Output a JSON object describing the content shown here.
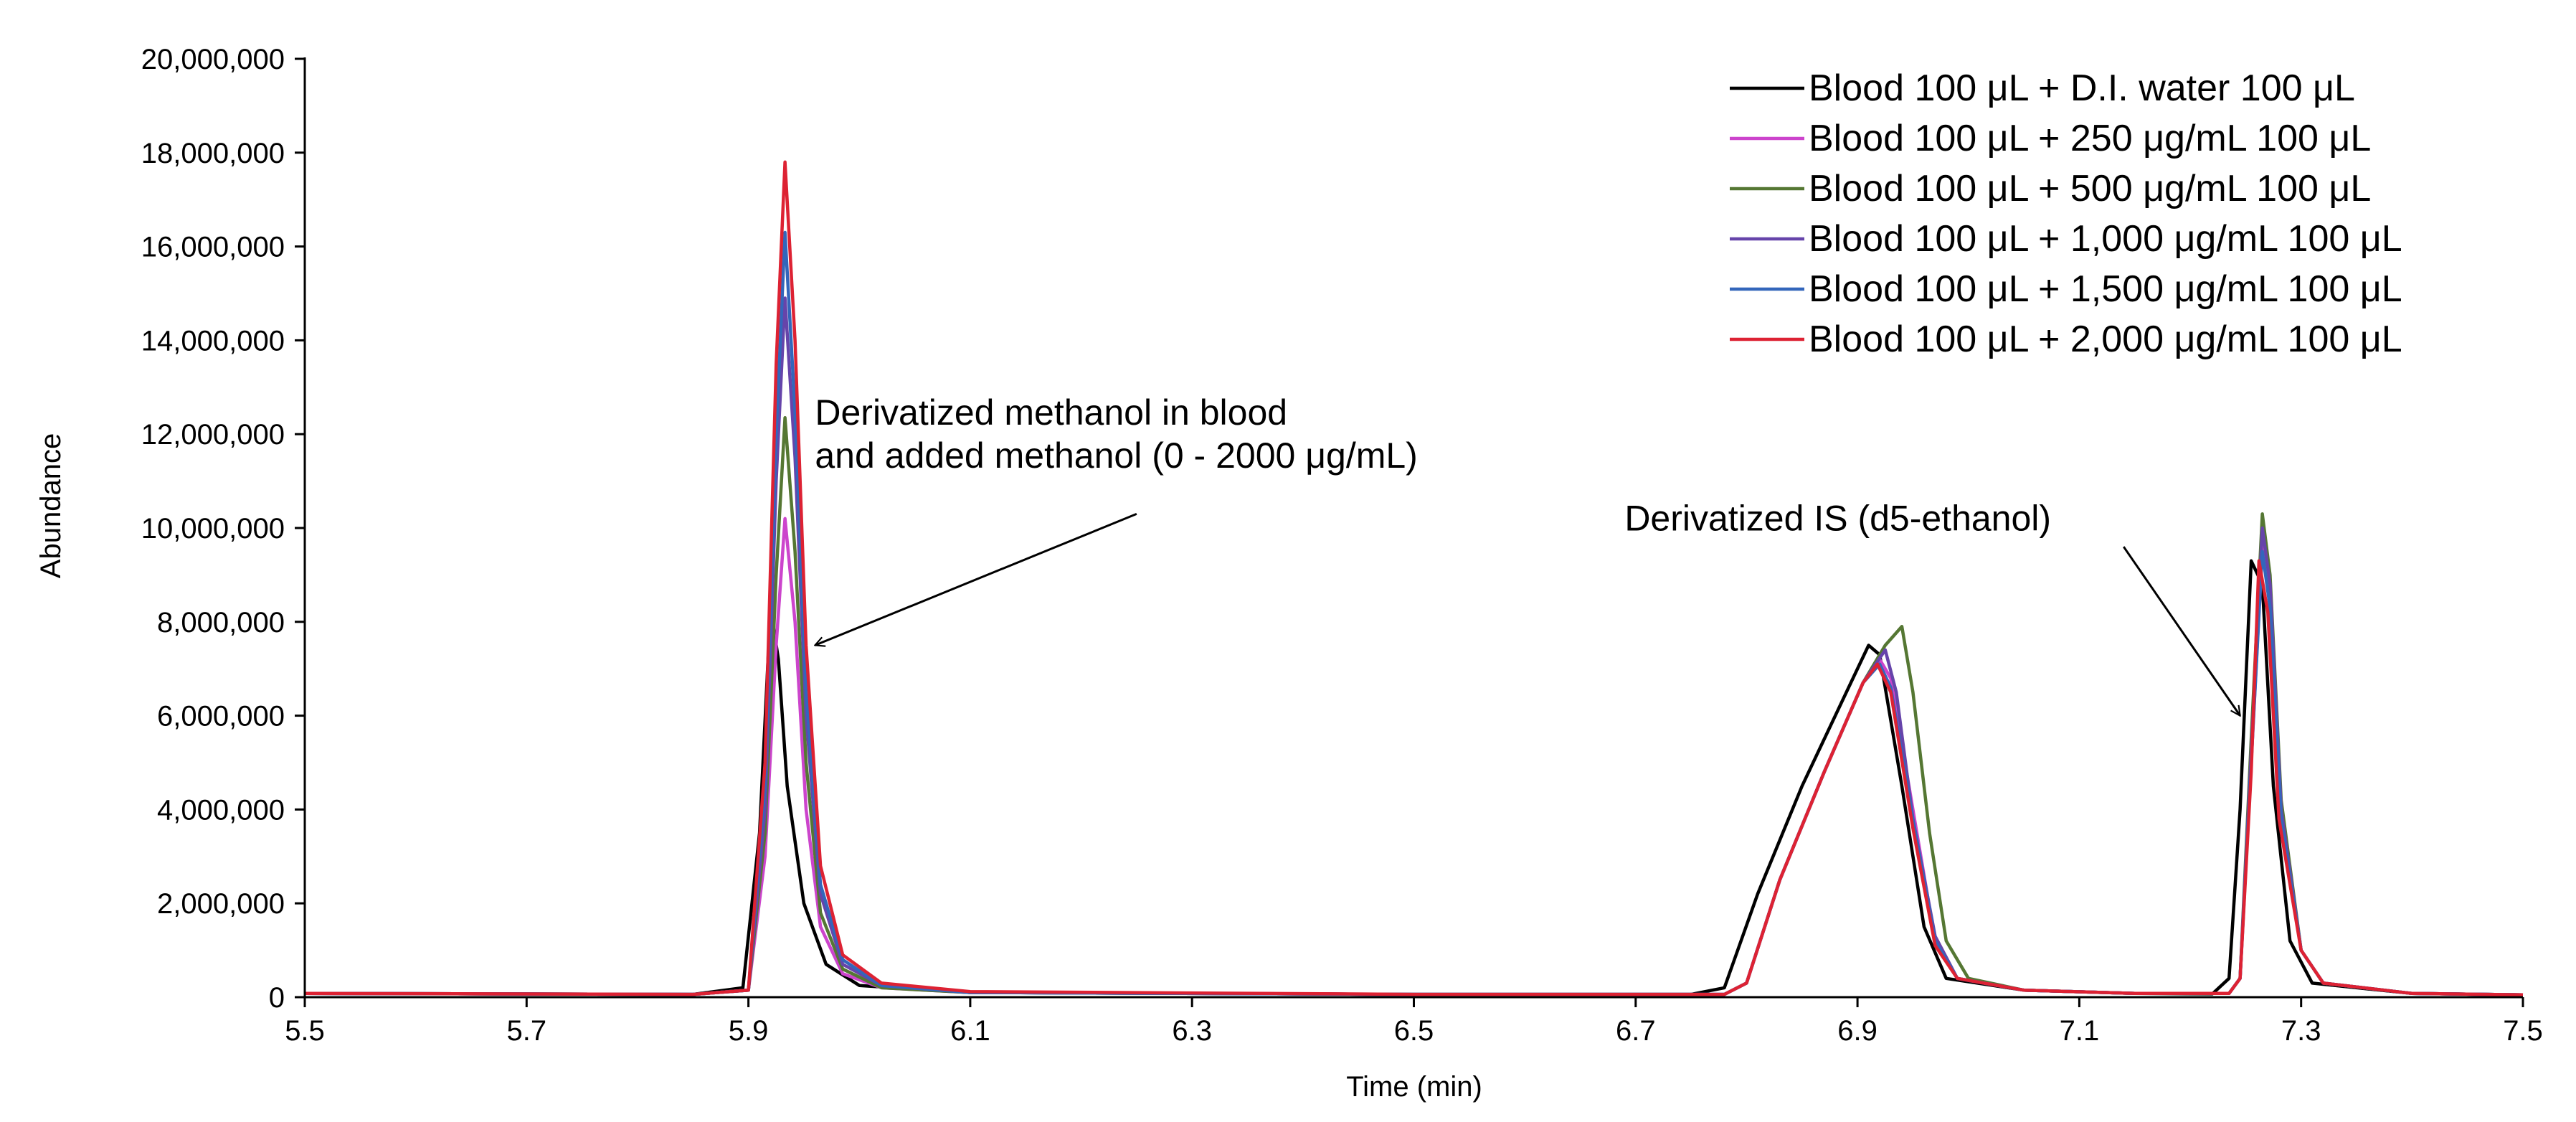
{
  "chart_data": {
    "type": "line",
    "title": "",
    "xlabel": "Time (min)",
    "ylabel": "Abundance",
    "xlim": [
      5.5,
      7.5
    ],
    "ylim": [
      0,
      20000000
    ],
    "x_ticks": [
      5.5,
      5.7,
      5.9,
      6.1,
      6.3,
      6.5,
      6.7,
      6.9,
      7.1,
      7.3,
      7.5
    ],
    "x_tick_labels": [
      "5.5",
      "5.7",
      "5.9",
      "6.1",
      "6.3",
      "6.5",
      "6.7",
      "6.9",
      "7.1",
      "7.3",
      "7.5"
    ],
    "y_ticks": [
      0,
      2000000,
      4000000,
      6000000,
      8000000,
      10000000,
      12000000,
      14000000,
      16000000,
      18000000,
      20000000
    ],
    "y_tick_labels": [
      "0",
      "2,000,000",
      "4,000,000",
      "6,000,000",
      "8,000,000",
      "10,000,000",
      "12,000,000",
      "14,000,000",
      "16,000,000",
      "18,000,000",
      "20,000,000"
    ],
    "grid": false,
    "legend_position": "top-right",
    "series": [
      {
        "name": "Blood 100 μL + D.I. water 100 μL",
        "color": "#000000",
        "points": [
          [
            5.5,
            80000
          ],
          [
            5.85,
            60000
          ],
          [
            5.895,
            200000
          ],
          [
            5.91,
            3500000
          ],
          [
            5.92,
            8300000
          ],
          [
            5.927,
            7200000
          ],
          [
            5.935,
            4500000
          ],
          [
            5.95,
            2000000
          ],
          [
            5.97,
            700000
          ],
          [
            6.0,
            250000
          ],
          [
            6.1,
            100000
          ],
          [
            6.5,
            60000
          ],
          [
            6.75,
            60000
          ],
          [
            6.78,
            200000
          ],
          [
            6.81,
            2200000
          ],
          [
            6.85,
            4500000
          ],
          [
            6.89,
            6500000
          ],
          [
            6.91,
            7500000
          ],
          [
            6.92,
            7300000
          ],
          [
            6.94,
            4500000
          ],
          [
            6.96,
            1500000
          ],
          [
            6.98,
            400000
          ],
          [
            7.05,
            150000
          ],
          [
            7.15,
            80000
          ],
          [
            7.22,
            70000
          ],
          [
            7.235,
            400000
          ],
          [
            7.245,
            4000000
          ],
          [
            7.255,
            9300000
          ],
          [
            7.265,
            8800000
          ],
          [
            7.275,
            4500000
          ],
          [
            7.29,
            1200000
          ],
          [
            7.31,
            300000
          ],
          [
            7.4,
            80000
          ],
          [
            7.5,
            50000
          ]
        ]
      },
      {
        "name": "Blood 100 μL + 250 μg/mL 100 μL",
        "color": "#cc44cc",
        "points": [
          [
            5.5,
            80000
          ],
          [
            5.85,
            60000
          ],
          [
            5.9,
            150000
          ],
          [
            5.915,
            3000000
          ],
          [
            5.925,
            7500000
          ],
          [
            5.933,
            10200000
          ],
          [
            5.942,
            8000000
          ],
          [
            5.952,
            4000000
          ],
          [
            5.965,
            1500000
          ],
          [
            5.985,
            500000
          ],
          [
            6.02,
            200000
          ],
          [
            6.1,
            100000
          ],
          [
            6.5,
            60000
          ],
          [
            6.78,
            60000
          ],
          [
            6.8,
            300000
          ],
          [
            6.83,
            2500000
          ],
          [
            6.87,
            4800000
          ],
          [
            6.905,
            6700000
          ],
          [
            6.92,
            7200000
          ],
          [
            6.93,
            6800000
          ],
          [
            6.95,
            4000000
          ],
          [
            6.97,
            1200000
          ],
          [
            6.99,
            400000
          ],
          [
            7.05,
            150000
          ],
          [
            7.15,
            80000
          ],
          [
            7.235,
            80000
          ],
          [
            7.245,
            400000
          ],
          [
            7.255,
            5000000
          ],
          [
            7.265,
            9600000
          ],
          [
            7.272,
            8500000
          ],
          [
            7.282,
            4000000
          ],
          [
            7.3,
            1000000
          ],
          [
            7.32,
            300000
          ],
          [
            7.4,
            80000
          ],
          [
            7.5,
            50000
          ]
        ]
      },
      {
        "name": "Blood 100 μL + 500 μg/mL 100 μL",
        "color": "#557733",
        "points": [
          [
            5.5,
            80000
          ],
          [
            5.85,
            60000
          ],
          [
            5.9,
            150000
          ],
          [
            5.915,
            3500000
          ],
          [
            5.925,
            9000000
          ],
          [
            5.933,
            12350000
          ],
          [
            5.942,
            9500000
          ],
          [
            5.952,
            5000000
          ],
          [
            5.965,
            1800000
          ],
          [
            5.985,
            600000
          ],
          [
            6.02,
            200000
          ],
          [
            6.1,
            100000
          ],
          [
            6.5,
            60000
          ],
          [
            6.78,
            60000
          ],
          [
            6.8,
            300000
          ],
          [
            6.83,
            2500000
          ],
          [
            6.87,
            4800000
          ],
          [
            6.905,
            6700000
          ],
          [
            6.925,
            7500000
          ],
          [
            6.94,
            7900000
          ],
          [
            6.95,
            6500000
          ],
          [
            6.965,
            3500000
          ],
          [
            6.98,
            1200000
          ],
          [
            7.0,
            400000
          ],
          [
            7.05,
            150000
          ],
          [
            7.15,
            80000
          ],
          [
            7.235,
            80000
          ],
          [
            7.245,
            400000
          ],
          [
            7.255,
            5500000
          ],
          [
            7.265,
            10300000
          ],
          [
            7.272,
            9000000
          ],
          [
            7.282,
            4200000
          ],
          [
            7.3,
            1000000
          ],
          [
            7.32,
            300000
          ],
          [
            7.4,
            80000
          ],
          [
            7.5,
            50000
          ]
        ]
      },
      {
        "name": "Blood 100 μL + 1,000 μg/mL 100 μL",
        "color": "#6644aa",
        "points": [
          [
            5.5,
            80000
          ],
          [
            5.85,
            60000
          ],
          [
            5.9,
            150000
          ],
          [
            5.915,
            4000000
          ],
          [
            5.925,
            11000000
          ],
          [
            5.933,
            14900000
          ],
          [
            5.942,
            11500000
          ],
          [
            5.952,
            6000000
          ],
          [
            5.965,
            2200000
          ],
          [
            5.985,
            700000
          ],
          [
            6.02,
            250000
          ],
          [
            6.1,
            100000
          ],
          [
            6.5,
            60000
          ],
          [
            6.78,
            60000
          ],
          [
            6.8,
            300000
          ],
          [
            6.83,
            2500000
          ],
          [
            6.87,
            4800000
          ],
          [
            6.905,
            6700000
          ],
          [
            6.925,
            7400000
          ],
          [
            6.935,
            6500000
          ],
          [
            6.95,
            3800000
          ],
          [
            6.97,
            1300000
          ],
          [
            6.99,
            400000
          ],
          [
            7.05,
            150000
          ],
          [
            7.15,
            80000
          ],
          [
            7.235,
            80000
          ],
          [
            7.245,
            400000
          ],
          [
            7.255,
            5200000
          ],
          [
            7.265,
            10000000
          ],
          [
            7.272,
            8800000
          ],
          [
            7.282,
            4000000
          ],
          [
            7.3,
            1000000
          ],
          [
            7.32,
            300000
          ],
          [
            7.4,
            80000
          ],
          [
            7.5,
            50000
          ]
        ]
      },
      {
        "name": "Blood 100 μL + 1,500 μg/mL 100 μL",
        "color": "#3366bb",
        "points": [
          [
            5.5,
            80000
          ],
          [
            5.85,
            60000
          ],
          [
            5.9,
            150000
          ],
          [
            5.915,
            4500000
          ],
          [
            5.925,
            12000000
          ],
          [
            5.933,
            16300000
          ],
          [
            5.942,
            12500000
          ],
          [
            5.952,
            6500000
          ],
          [
            5.965,
            2400000
          ],
          [
            5.985,
            800000
          ],
          [
            6.02,
            250000
          ],
          [
            6.1,
            100000
          ],
          [
            6.5,
            60000
          ],
          [
            6.78,
            60000
          ],
          [
            6.8,
            300000
          ],
          [
            6.83,
            2500000
          ],
          [
            6.87,
            4800000
          ],
          [
            6.905,
            6700000
          ],
          [
            6.92,
            7100000
          ],
          [
            6.93,
            6600000
          ],
          [
            6.95,
            3800000
          ],
          [
            6.97,
            1200000
          ],
          [
            6.99,
            400000
          ],
          [
            7.05,
            150000
          ],
          [
            7.15,
            80000
          ],
          [
            7.235,
            80000
          ],
          [
            7.245,
            400000
          ],
          [
            7.255,
            5000000
          ],
          [
            7.265,
            9500000
          ],
          [
            7.272,
            8300000
          ],
          [
            7.282,
            3800000
          ],
          [
            7.3,
            1000000
          ],
          [
            7.32,
            300000
          ],
          [
            7.4,
            80000
          ],
          [
            7.5,
            50000
          ]
        ]
      },
      {
        "name": "Blood 100 μL + 2,000 μg/mL 100 μL",
        "color": "#dd2233",
        "points": [
          [
            5.5,
            80000
          ],
          [
            5.85,
            60000
          ],
          [
            5.9,
            150000
          ],
          [
            5.915,
            5000000
          ],
          [
            5.925,
            13500000
          ],
          [
            5.933,
            17800000
          ],
          [
            5.942,
            14000000
          ],
          [
            5.952,
            7500000
          ],
          [
            5.965,
            2800000
          ],
          [
            5.985,
            900000
          ],
          [
            6.02,
            300000
          ],
          [
            6.1,
            120000
          ],
          [
            6.5,
            60000
          ],
          [
            6.78,
            60000
          ],
          [
            6.8,
            300000
          ],
          [
            6.83,
            2500000
          ],
          [
            6.87,
            4800000
          ],
          [
            6.905,
            6700000
          ],
          [
            6.918,
            7100000
          ],
          [
            6.93,
            6500000
          ],
          [
            6.95,
            3600000
          ],
          [
            6.97,
            1100000
          ],
          [
            6.99,
            400000
          ],
          [
            7.05,
            150000
          ],
          [
            7.15,
            80000
          ],
          [
            7.235,
            80000
          ],
          [
            7.245,
            400000
          ],
          [
            7.255,
            4800000
          ],
          [
            7.262,
            9300000
          ],
          [
            7.27,
            8200000
          ],
          [
            7.28,
            3800000
          ],
          [
            7.3,
            1000000
          ],
          [
            7.32,
            300000
          ],
          [
            7.4,
            80000
          ],
          [
            7.5,
            50000
          ]
        ]
      }
    ],
    "annotations": [
      {
        "lines": [
          "Derivatized methanol  in blood",
          "and added methanol  (0 - 2000 μg/mL)"
        ],
        "text_at": [
          5.96,
          12200000
        ],
        "arrow_from": [
          6.25,
          10300000
        ],
        "arrow_to": [
          5.96,
          7500000
        ]
      },
      {
        "lines": [
          "Derivatized IS  (d5-ethanol)"
        ],
        "text_at": [
          6.69,
          9950000
        ],
        "arrow_from": [
          7.14,
          9600000
        ],
        "arrow_to": [
          7.245,
          6000000
        ]
      }
    ]
  }
}
